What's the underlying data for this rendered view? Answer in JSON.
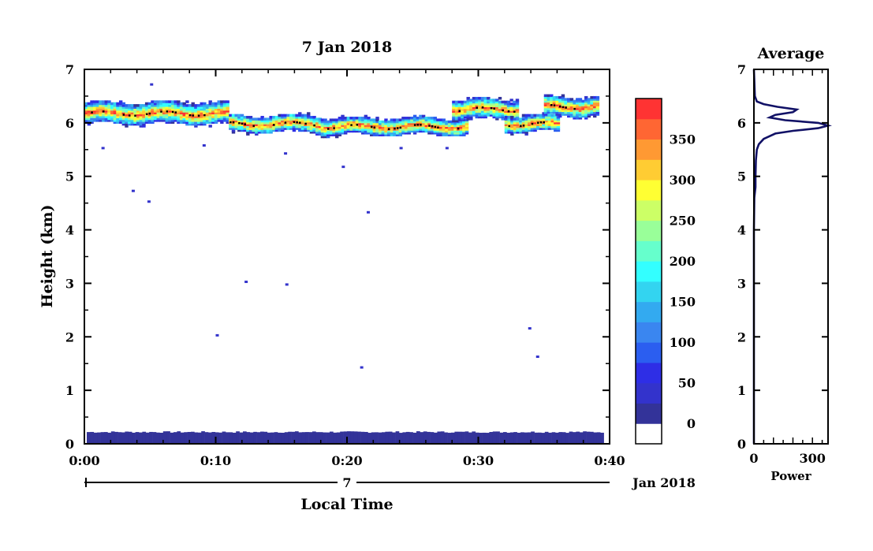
{
  "chart_data": [
    {
      "type": "heatmap",
      "title": "7 Jan 2018",
      "xlabel": "Local Time",
      "ylabel": "Height (km)",
      "x_ticks": [
        "0:00",
        "0:10",
        "0:20",
        "0:30",
        "0:40"
      ],
      "x_tick_values_min": [
        0,
        10,
        20,
        30,
        40
      ],
      "xlim_min": [
        0,
        40
      ],
      "y_ticks": [
        "0",
        "1",
        "2",
        "3",
        "4",
        "5",
        "6",
        "7"
      ],
      "ylim_km": [
        0,
        7
      ],
      "date_axis": {
        "day_label": "7",
        "month_year_label": "Jan 2018"
      },
      "colorbar": {
        "ticks": [
          "0",
          "50",
          "100",
          "150",
          "200",
          "250",
          "300",
          "350"
        ],
        "range": [
          0,
          380
        ],
        "colors": [
          "#ffffff",
          "#333399",
          "#3333cc",
          "#2e2ee6",
          "#2b5ef0",
          "#3a86f0",
          "#33aaf0",
          "#33d4f0",
          "#33ffff",
          "#66ffcc",
          "#99ff99",
          "#ccff66",
          "#ffff33",
          "#ffcc33",
          "#ff9933",
          "#ff6633",
          "#ff3333"
        ]
      },
      "cloud_layers": [
        {
          "t_min": [
            0,
            11
          ],
          "height_km": [
            6.05,
            6.3
          ],
          "peak_power": 380
        },
        {
          "t_min": [
            11,
            18
          ],
          "height_km": [
            5.9,
            6.05
          ],
          "peak_power": 380
        },
        {
          "t_min": [
            18,
            29
          ],
          "height_km": [
            5.85,
            6.0
          ],
          "peak_power": 380
        },
        {
          "t_min": [
            28,
            33
          ],
          "height_km": [
            6.15,
            6.35
          ],
          "peak_power": 380
        },
        {
          "t_min": [
            32,
            36
          ],
          "height_km": [
            5.9,
            6.05
          ],
          "peak_power": 380
        },
        {
          "t_min": [
            35,
            39
          ],
          "height_km": [
            6.2,
            6.4
          ],
          "peak_power": 380
        }
      ],
      "surface_clutter": {
        "height_km": [
          0,
          0.22
        ],
        "power": 0
      }
    },
    {
      "type": "line",
      "title": "Average",
      "xlabel": "Power",
      "x_ticks": [
        "0",
        "300"
      ],
      "xlim": [
        0,
        380
      ],
      "y_ticks": [
        "0",
        "1",
        "2",
        "3",
        "4",
        "5",
        "6",
        "7"
      ],
      "ylim_km": [
        0,
        7
      ],
      "series": [
        {
          "height_km": [
            0,
            1,
            2,
            3,
            4,
            4.6,
            4.8,
            5.0,
            5.3,
            5.5,
            5.6,
            5.7,
            5.8,
            5.85,
            5.9,
            5.95,
            6.0,
            6.05,
            6.1,
            6.15,
            6.2,
            6.25,
            6.3,
            6.35,
            6.4,
            6.5,
            7.0
          ],
          "power": [
            0,
            0,
            0,
            0,
            0,
            2,
            8,
            8,
            10,
            15,
            25,
            50,
            110,
            200,
            330,
            380,
            330,
            160,
            80,
            110,
            200,
            220,
            120,
            50,
            15,
            5,
            0
          ]
        }
      ]
    }
  ]
}
